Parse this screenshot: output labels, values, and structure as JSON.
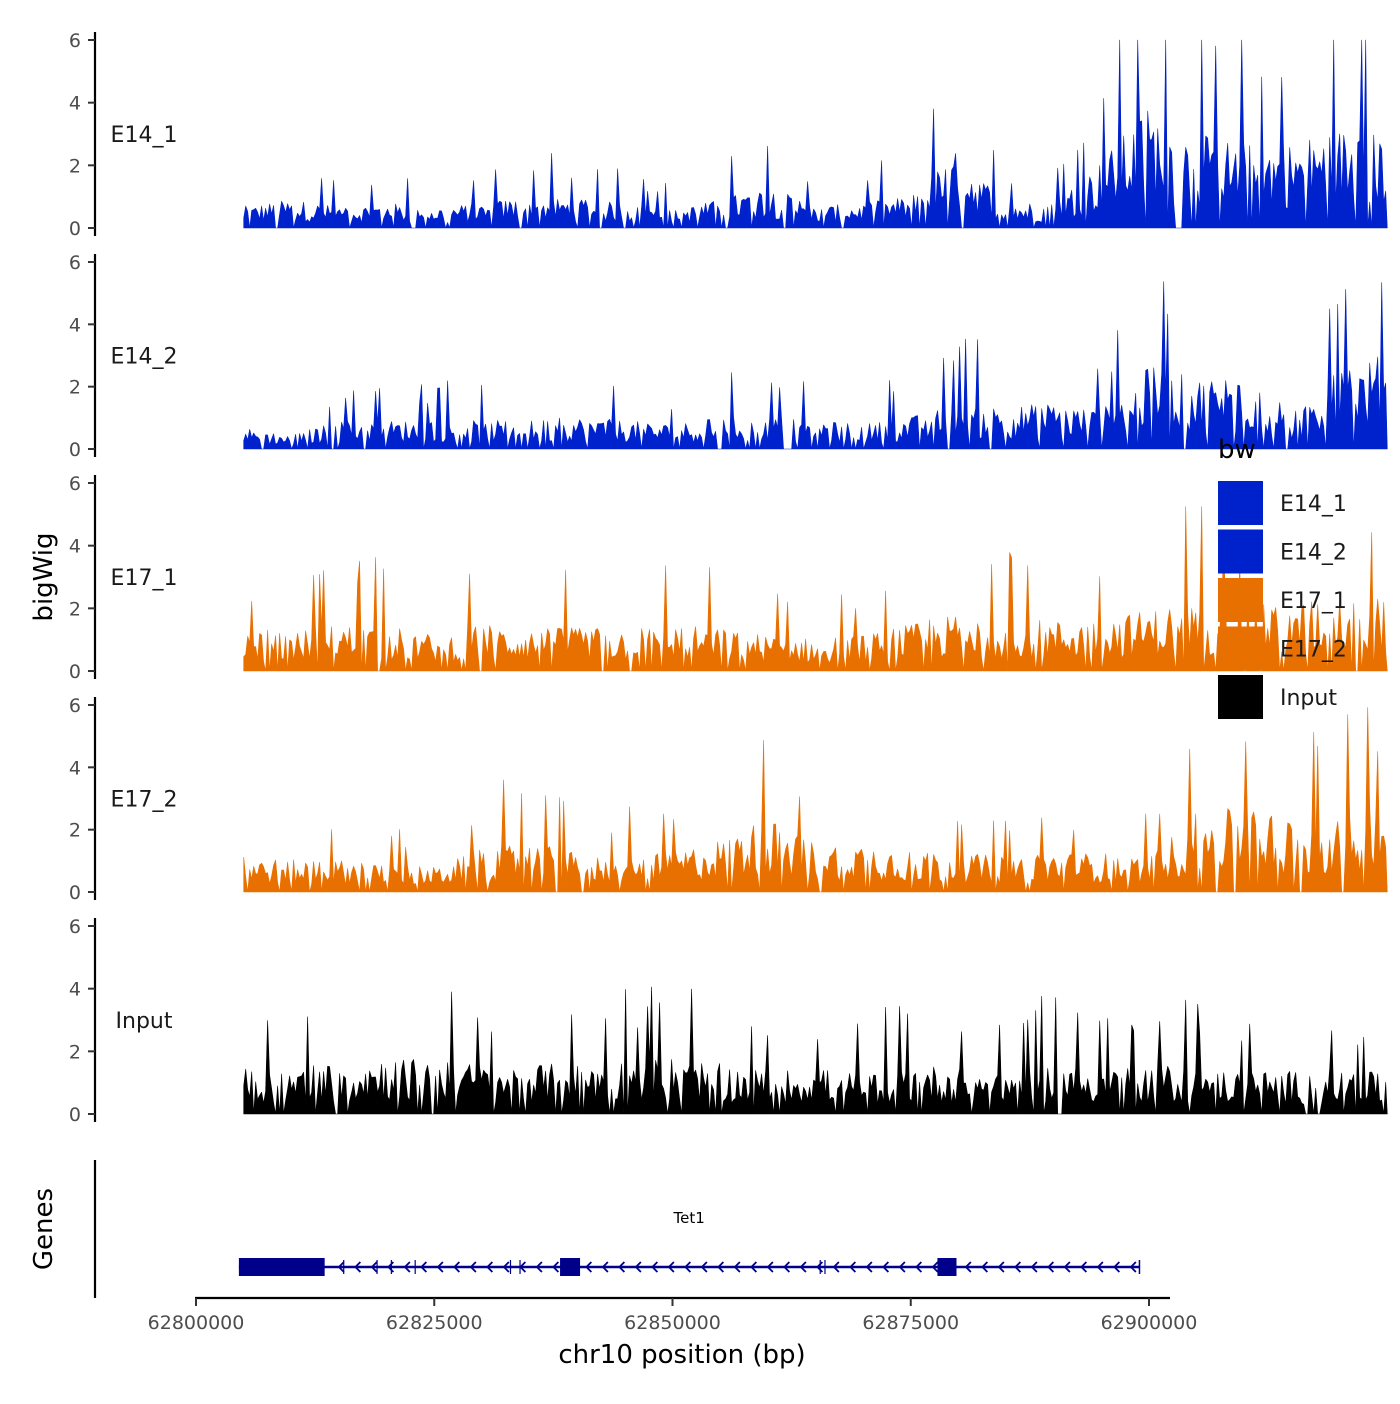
{
  "chart_data": {
    "type": "area",
    "title": "",
    "xlabel": "chr10 position (bp)",
    "ylabel": "bigWig",
    "genes_label": "Genes",
    "xlim": [
      62800000,
      62900000
    ],
    "ylim": [
      0,
      6
    ],
    "x_ticks": [
      62800000,
      62825000,
      62850000,
      62875000,
      62900000
    ],
    "x_tick_labels": [
      "62800000",
      "62825000",
      "62850000",
      "62875000",
      "62900000"
    ],
    "y_ticks": [
      0,
      2,
      4,
      6
    ],
    "y_tick_labels": [
      "0",
      "2",
      "4",
      "6"
    ],
    "x_bin_size": 5000,
    "legend": {
      "title": "bw",
      "position": "right",
      "entries": [
        {
          "label": "E14_1",
          "color": "#0022CC"
        },
        {
          "label": "E14_2",
          "color": "#0022CC"
        },
        {
          "label": "E17_1",
          "color": "#E87000"
        },
        {
          "label": "E17_2",
          "color": "#E87000"
        },
        {
          "label": "Input",
          "color": "#000000"
        }
      ]
    },
    "series": [
      {
        "name": "E14_1",
        "color": "#0022CC",
        "x_start": 62805000,
        "values": [
          0.6,
          0.8,
          0.6,
          0.7,
          0.6,
          0.7,
          0.9,
          0.8,
          0.7,
          0.5,
          0.8,
          1.2,
          0.6,
          0.7,
          0.9,
          2.2,
          0.7,
          0.7,
          1.9,
          3.4,
          2.6,
          2.4,
          2.4,
          2.8,
          2.6
        ]
      },
      {
        "name": "E14_2",
        "color": "#0022CC",
        "x_start": 62805000,
        "values": [
          0.6,
          0.4,
          0.8,
          0.8,
          0.8,
          0.8,
          0.8,
          0.9,
          0.8,
          0.7,
          0.9,
          0.9,
          0.8,
          0.7,
          0.9,
          1.3,
          1.2,
          1.3,
          1.1,
          2.3,
          2.0,
          2.2,
          1.0,
          2.2,
          2.7
        ]
      },
      {
        "name": "E17_1",
        "color": "#E87000",
        "x_start": 62805000,
        "values": [
          1.2,
          1.1,
          1.3,
          1.3,
          1.0,
          1.3,
          1.2,
          1.2,
          1.2,
          1.3,
          1.2,
          1.0,
          0.9,
          1.0,
          1.3,
          1.6,
          1.5,
          1.4,
          1.5,
          1.7,
          2.0,
          1.9,
          1.8,
          2.2,
          2.2
        ]
      },
      {
        "name": "E17_2",
        "color": "#E87000",
        "x_start": 62805000,
        "values": [
          1.0,
          0.9,
          0.9,
          0.8,
          0.7,
          1.2,
          1.4,
          1.1,
          1.0,
          1.1,
          1.5,
          2.1,
          1.4,
          1.4,
          1.2,
          1.1,
          1.0,
          1.1,
          1.1,
          1.0,
          2.2,
          2.4,
          2.1,
          2.0,
          2.6
        ]
      },
      {
        "name": "Input",
        "color": "#000000",
        "x_start": 62805000,
        "values": [
          1.3,
          1.3,
          1.5,
          1.6,
          1.5,
          1.4,
          1.4,
          1.4,
          1.5,
          1.6,
          1.4,
          1.2,
          1.3,
          1.1,
          1.4,
          1.3,
          1.2,
          1.4,
          1.3,
          1.4,
          1.3,
          1.2,
          1.2,
          1.3,
          1.1
        ]
      }
    ],
    "gene_track": {
      "gene_name": "Tet1",
      "strand": "-",
      "color": "#00008B",
      "start": 62804500,
      "end": 62899000,
      "exons": [
        [
          62804500,
          62813500
        ],
        [
          62838200,
          62840300
        ],
        [
          62877800,
          62879800
        ]
      ]
    }
  }
}
